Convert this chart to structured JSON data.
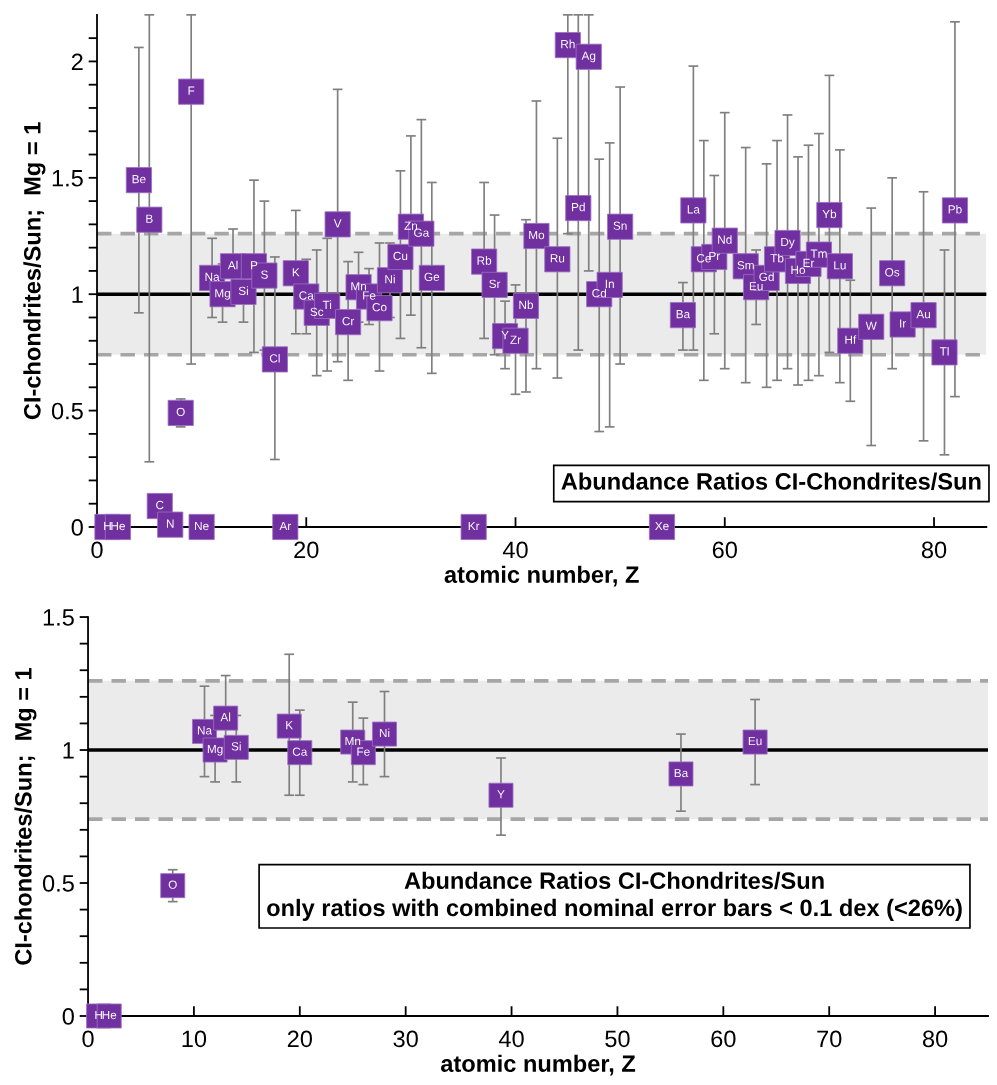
{
  "chart_data": [
    {
      "type": "scatter",
      "title": "Abundance Ratios CI-Chondrites/Sun",
      "xlabel": "atomic number, Z",
      "ylabel": "CI-chondrites/Sun;  Mg = 1",
      "xlim": [
        0,
        85
      ],
      "xticks": [
        0,
        20,
        40,
        60,
        80
      ],
      "ylim": [
        0,
        2.2
      ],
      "yticks": [
        0,
        {
          "value": 0.1,
          "label": null
        },
        {
          "value": 0.2,
          "label": null
        },
        {
          "value": 0.3,
          "label": null
        },
        {
          "value": 0.4,
          "label": null
        },
        0.5,
        {
          "value": 0.6,
          "label": null
        },
        {
          "value": 0.7,
          "label": null
        },
        {
          "value": 0.8,
          "label": null
        },
        {
          "value": 0.9,
          "label": null
        },
        1,
        {
          "value": 1.1,
          "label": null
        },
        {
          "value": 1.2,
          "label": null
        },
        {
          "value": 1.3,
          "label": null
        },
        {
          "value": 1.4,
          "label": null
        },
        1.5,
        {
          "value": 1.6,
          "label": null
        },
        {
          "value": 1.7,
          "label": null
        },
        {
          "value": 1.8,
          "label": null
        },
        {
          "value": 1.9,
          "label": null
        },
        2,
        {
          "value": 2.1,
          "label": null
        }
      ],
      "marker": "square",
      "grid": false,
      "ref_lines": [
        {
          "axis": "y",
          "value": 1,
          "color": "#000000",
          "line_style": "solid"
        },
        {
          "axis": "y",
          "value": 0.74,
          "color": "#a6a6a6",
          "line_style": "dashed"
        },
        {
          "axis": "y",
          "value": 1.26,
          "color": "#a6a6a6",
          "line_style": "dashed"
        }
      ],
      "bands": [
        {
          "axis": "y",
          "from": 0.74,
          "to": 1.26,
          "color": "#ebebeb"
        }
      ],
      "series": [
        {
          "color": "#7030a0",
          "x": [
            1,
            2,
            4,
            5,
            6,
            7,
            8,
            9,
            10,
            11,
            12,
            13,
            14,
            15,
            16,
            17,
            18,
            19,
            20,
            21,
            22,
            23,
            24,
            25,
            26,
            27,
            28,
            29,
            30,
            31,
            32,
            36,
            37,
            38,
            39,
            40,
            41,
            42,
            44,
            45,
            46,
            47,
            48,
            49,
            50,
            54,
            56,
            57,
            58,
            59,
            60,
            62,
            63,
            64,
            65,
            66,
            67,
            68,
            69,
            70,
            71,
            72,
            74,
            76,
            77,
            79,
            81,
            82
          ],
          "values": [
            0,
            0,
            1.49,
            1.32,
            0.09,
            0.01,
            0.49,
            1.87,
            0,
            1.07,
            1.0,
            1.12,
            1.01,
            1.12,
            1.08,
            0.72,
            0,
            1.09,
            0.99,
            0.92,
            0.95,
            1.3,
            0.88,
            1.03,
            0.99,
            0.94,
            1.06,
            1.16,
            1.29,
            1.26,
            1.07,
            0,
            1.14,
            1.04,
            0.82,
            0.8,
            0.95,
            1.25,
            1.15,
            2.07,
            1.37,
            2.02,
            1.0,
            1.04,
            1.29,
            0,
            0.91,
            1.36,
            1.15,
            1.16,
            1.23,
            1.12,
            1.03,
            1.07,
            1.15,
            1.22,
            1.1,
            1.13,
            1.17,
            1.34,
            1.12,
            0.8,
            0.86,
            1.09,
            0.87,
            0.91,
            0.75,
            1.36
          ],
          "errors": [
            null,
            null,
            [
              0.92,
              2.06
            ],
            [
              0.28,
              2.2
            ],
            null,
            null,
            [
              0.43,
              0.55
            ],
            [
              0.7,
              2.2
            ],
            null,
            [
              0.9,
              1.24
            ],
            [
              0.88,
              1.13
            ],
            [
              0.98,
              1.28
            ],
            [
              0.88,
              1.13
            ],
            [
              0.75,
              1.49
            ],
            [
              0.76,
              1.4
            ],
            [
              0.29,
              1.16
            ],
            null,
            [
              0.83,
              1.36
            ],
            [
              0.83,
              1.15
            ],
            [
              0.65,
              1.19
            ],
            [
              0.67,
              1.24
            ],
            [
              0.71,
              1.88
            ],
            [
              0.63,
              1.14
            ],
            [
              0.88,
              1.18
            ],
            [
              0.87,
              1.11
            ],
            [
              0.67,
              1.22
            ],
            [
              0.9,
              1.22
            ],
            [
              0.81,
              1.53
            ],
            [
              0.91,
              1.68
            ],
            [
              0.77,
              1.75
            ],
            [
              0.66,
              1.48
            ],
            null,
            [
              0.81,
              1.48
            ],
            [
              0.74,
              1.34
            ],
            [
              0.68,
              0.97
            ],
            [
              0.57,
              1.04
            ],
            [
              0.58,
              1.32
            ],
            [
              0.68,
              1.83
            ],
            [
              0.64,
              1.67
            ],
            [
              1.26,
              2.2
            ],
            [
              0.76,
              2.2
            ],
            [
              1.1,
              2.2
            ],
            [
              0.41,
              1.58
            ],
            [
              0.43,
              1.65
            ],
            [
              0.7,
              1.89
            ],
            null,
            [
              0.76,
              1.05
            ],
            [
              0.76,
              1.98
            ],
            [
              0.63,
              1.66
            ],
            [
              0.83,
              1.51
            ],
            [
              0.68,
              1.78
            ],
            [
              0.62,
              1.63
            ],
            [
              0.87,
              1.19
            ],
            [
              0.6,
              1.56
            ],
            [
              0.63,
              1.66
            ],
            [
              0.68,
              1.77
            ],
            [
              0.61,
              1.59
            ],
            [
              0.63,
              1.64
            ],
            [
              0.65,
              1.69
            ],
            [
              0.75,
              1.94
            ],
            [
              0.62,
              1.62
            ],
            [
              0.54,
              1.06
            ],
            [
              0.35,
              1.37
            ],
            [
              0.68,
              1.5
            ],
            null,
            [
              0.37,
              1.44
            ],
            [
              0.31,
              1.19
            ],
            [
              0.56,
              2.17
            ]
          ]
        }
      ],
      "annotations": [
        {
          "text": "H",
          "x": 1,
          "y": 0
        },
        {
          "text": "He",
          "x": 2,
          "y": 0
        },
        {
          "text": "Be",
          "x": 4,
          "y": 1.49
        },
        {
          "text": "B",
          "x": 5,
          "y": 1.32
        },
        {
          "text": "C",
          "x": 6,
          "y": 0.09
        },
        {
          "text": "N",
          "x": 7,
          "y": 0.01
        },
        {
          "text": "O",
          "x": 8,
          "y": 0.49
        },
        {
          "text": "F",
          "x": 9,
          "y": 1.87
        },
        {
          "text": "Ne",
          "x": 10,
          "y": 0
        },
        {
          "text": "Na",
          "x": 11,
          "y": 1.07
        },
        {
          "text": "Mg",
          "x": 12,
          "y": 1.0
        },
        {
          "text": "Al",
          "x": 13,
          "y": 1.12
        },
        {
          "text": "Si",
          "x": 14,
          "y": 1.01
        },
        {
          "text": "P",
          "x": 15,
          "y": 1.12
        },
        {
          "text": "S",
          "x": 16,
          "y": 1.08
        },
        {
          "text": "Cl",
          "x": 17,
          "y": 0.72
        },
        {
          "text": "Ar",
          "x": 18,
          "y": 0
        },
        {
          "text": "K",
          "x": 19,
          "y": 1.09
        },
        {
          "text": "Ca",
          "x": 20,
          "y": 0.99
        },
        {
          "text": "Sc",
          "x": 21,
          "y": 0.92
        },
        {
          "text": "Ti",
          "x": 22,
          "y": 0.95
        },
        {
          "text": "V",
          "x": 23,
          "y": 1.3
        },
        {
          "text": "Cr",
          "x": 24,
          "y": 0.88
        },
        {
          "text": "Mn",
          "x": 25,
          "y": 1.03
        },
        {
          "text": "Fe",
          "x": 26,
          "y": 0.99
        },
        {
          "text": "Co",
          "x": 27,
          "y": 0.94
        },
        {
          "text": "Ni",
          "x": 28,
          "y": 1.06
        },
        {
          "text": "Cu",
          "x": 29,
          "y": 1.16
        },
        {
          "text": "Zn",
          "x": 30,
          "y": 1.29
        },
        {
          "text": "Ga",
          "x": 31,
          "y": 1.26
        },
        {
          "text": "Ge",
          "x": 32,
          "y": 1.07
        },
        {
          "text": "Kr",
          "x": 36,
          "y": 0
        },
        {
          "text": "Rb",
          "x": 37,
          "y": 1.14
        },
        {
          "text": "Sr",
          "x": 38,
          "y": 1.04
        },
        {
          "text": "Y",
          "x": 39,
          "y": 0.82
        },
        {
          "text": "Zr",
          "x": 40,
          "y": 0.8
        },
        {
          "text": "Nb",
          "x": 41,
          "y": 0.95
        },
        {
          "text": "Mo",
          "x": 42,
          "y": 1.25
        },
        {
          "text": "Ru",
          "x": 44,
          "y": 1.15
        },
        {
          "text": "Rh",
          "x": 45,
          "y": 2.07
        },
        {
          "text": "Pd",
          "x": 46,
          "y": 1.37
        },
        {
          "text": "Ag",
          "x": 47,
          "y": 2.02
        },
        {
          "text": "Cd",
          "x": 48,
          "y": 1.0
        },
        {
          "text": "In",
          "x": 49,
          "y": 1.04
        },
        {
          "text": "Sn",
          "x": 50,
          "y": 1.29
        },
        {
          "text": "Xe",
          "x": 54,
          "y": 0
        },
        {
          "text": "Ba",
          "x": 56,
          "y": 0.91
        },
        {
          "text": "La",
          "x": 57,
          "y": 1.36
        },
        {
          "text": "Ce",
          "x": 58,
          "y": 1.15
        },
        {
          "text": "Pr",
          "x": 59,
          "y": 1.16
        },
        {
          "text": "Nd",
          "x": 60,
          "y": 1.23
        },
        {
          "text": "Sm",
          "x": 62,
          "y": 1.12
        },
        {
          "text": "Eu",
          "x": 63,
          "y": 1.03
        },
        {
          "text": "Gd",
          "x": 64,
          "y": 1.07
        },
        {
          "text": "Tb",
          "x": 65,
          "y": 1.15
        },
        {
          "text": "Dy",
          "x": 66,
          "y": 1.22
        },
        {
          "text": "Ho",
          "x": 67,
          "y": 1.1
        },
        {
          "text": "Er",
          "x": 68,
          "y": 1.13
        },
        {
          "text": "Tm",
          "x": 69,
          "y": 1.17
        },
        {
          "text": "Yb",
          "x": 70,
          "y": 1.34
        },
        {
          "text": "Lu",
          "x": 71,
          "y": 1.12
        },
        {
          "text": "Hf",
          "x": 72,
          "y": 0.8
        },
        {
          "text": "W",
          "x": 74,
          "y": 0.86
        },
        {
          "text": "Os",
          "x": 76,
          "y": 1.09
        },
        {
          "text": "Ir",
          "x": 77,
          "y": 0.87
        },
        {
          "text": "Au",
          "x": 79,
          "y": 0.91
        },
        {
          "text": "Tl",
          "x": 81,
          "y": 0.75
        },
        {
          "text": "Pb",
          "x": 82,
          "y": 1.36
        }
      ]
    },
    {
      "type": "scatter",
      "title": "Abundance Ratios CI-Chondrites/Sun",
      "subtitle": "only ratios with combined nominal error bars < 0.1 dex (<26%)",
      "xlabel": "atomic number, Z",
      "ylabel": "CI-chondrites/Sun;  Mg = 1",
      "xlim": [
        0,
        85
      ],
      "xticks": [
        0,
        10,
        20,
        30,
        40,
        50,
        60,
        70,
        80
      ],
      "ylim": [
        0,
        1.5
      ],
      "yticks": [
        0,
        {
          "value": 0.1,
          "label": null
        },
        {
          "value": 0.2,
          "label": null
        },
        {
          "value": 0.3,
          "label": null
        },
        {
          "value": 0.4,
          "label": null
        },
        0.5,
        {
          "value": 0.6,
          "label": null
        },
        {
          "value": 0.7,
          "label": null
        },
        {
          "value": 0.8,
          "label": null
        },
        {
          "value": 0.9,
          "label": null
        },
        1,
        {
          "value": 1.1,
          "label": null
        },
        {
          "value": 1.2,
          "label": null
        },
        {
          "value": 1.3,
          "label": null
        },
        {
          "value": 1.4,
          "label": null
        },
        1.5
      ],
      "marker": "square",
      "grid": false,
      "ref_lines": [
        {
          "axis": "y",
          "value": 1,
          "color": "#000000",
          "line_style": "solid"
        },
        {
          "axis": "y",
          "value": 0.74,
          "color": "#a6a6a6",
          "line_style": "dashed"
        },
        {
          "axis": "y",
          "value": 1.26,
          "color": "#a6a6a6",
          "line_style": "dashed"
        }
      ],
      "bands": [
        {
          "axis": "y",
          "from": 0.74,
          "to": 1.26,
          "color": "#ebebeb"
        }
      ],
      "series": [
        {
          "color": "#7030a0",
          "x": [
            1,
            2,
            8,
            11,
            12,
            13,
            14,
            19,
            20,
            25,
            26,
            28,
            39,
            56,
            63
          ],
          "values": [
            0,
            0,
            0.49,
            1.07,
            1.0,
            1.12,
            1.01,
            1.09,
            0.99,
            1.03,
            0.99,
            1.06,
            0.83,
            0.91,
            1.03
          ],
          "errors": [
            null,
            null,
            [
              0.43,
              0.55
            ],
            [
              0.9,
              1.24
            ],
            [
              0.88,
              1.13
            ],
            [
              0.98,
              1.28
            ],
            [
              0.88,
              1.13
            ],
            [
              0.83,
              1.36
            ],
            [
              0.83,
              1.15
            ],
            [
              0.88,
              1.18
            ],
            [
              0.87,
              1.12
            ],
            [
              0.9,
              1.22
            ],
            [
              0.68,
              0.97
            ],
            [
              0.77,
              1.06
            ],
            [
              0.87,
              1.19
            ]
          ]
        }
      ],
      "annotations": [
        {
          "text": "H",
          "x": 1,
          "y": 0
        },
        {
          "text": "He",
          "x": 2,
          "y": 0
        },
        {
          "text": "O",
          "x": 8,
          "y": 0.49
        },
        {
          "text": "Na",
          "x": 11,
          "y": 1.07
        },
        {
          "text": "Mg",
          "x": 12,
          "y": 1.0
        },
        {
          "text": "Al",
          "x": 13,
          "y": 1.12
        },
        {
          "text": "Si",
          "x": 14,
          "y": 1.01
        },
        {
          "text": "K",
          "x": 19,
          "y": 1.09
        },
        {
          "text": "Ca",
          "x": 20,
          "y": 0.99
        },
        {
          "text": "Mn",
          "x": 25,
          "y": 1.03
        },
        {
          "text": "Fe",
          "x": 26,
          "y": 0.99
        },
        {
          "text": "Ni",
          "x": 28,
          "y": 1.06
        },
        {
          "text": "Y",
          "x": 39,
          "y": 0.83
        },
        {
          "text": "Ba",
          "x": 56,
          "y": 0.91
        },
        {
          "text": "Eu",
          "x": 63,
          "y": 1.03
        }
      ]
    }
  ]
}
